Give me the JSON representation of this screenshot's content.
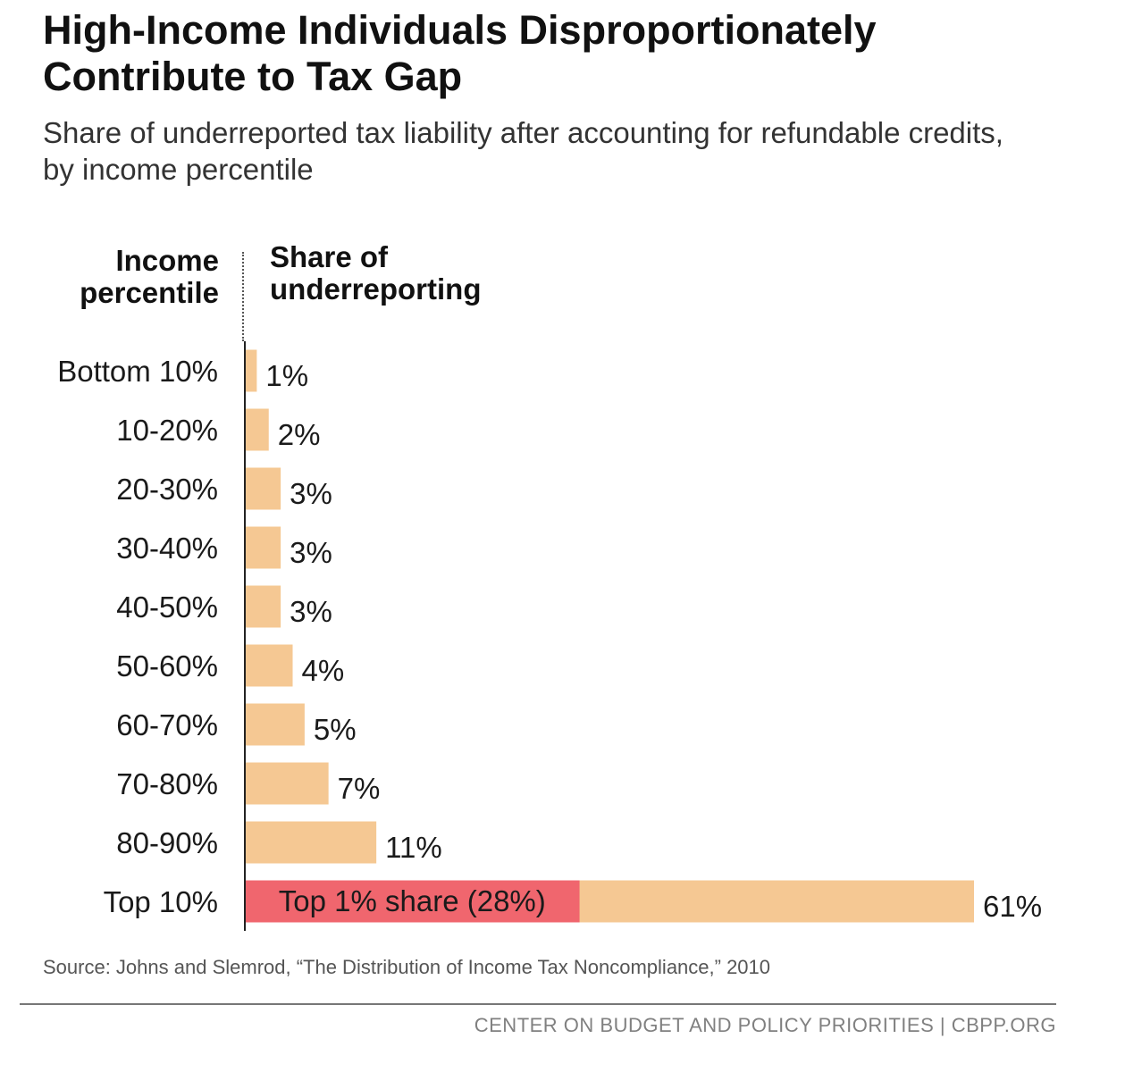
{
  "chart_data": {
    "type": "bar",
    "orientation": "horizontal",
    "title_lines": [
      "High-Income Individuals Disproportionately",
      "Contribute to Tax Gap"
    ],
    "subtitle_lines": [
      "Share of underreported tax liability after accounting for refundable credits,",
      "by income percentile"
    ],
    "category_header_lines": [
      "Income",
      "percentile"
    ],
    "value_header_lines": [
      "Share of",
      "underreporting"
    ],
    "categories": [
      "Bottom 10%",
      "10-20%",
      "20-30%",
      "30-40%",
      "40-50%",
      "50-60%",
      "60-70%",
      "70-80%",
      "80-90%",
      "Top 10%"
    ],
    "values": [
      1,
      2,
      3,
      3,
      3,
      4,
      5,
      7,
      11,
      61
    ],
    "value_labels": [
      "1%",
      "2%",
      "3%",
      "3%",
      "3%",
      "4%",
      "5%",
      "7%",
      "11%",
      "61%"
    ],
    "xlim": [
      0,
      61
    ],
    "subsegment": {
      "category": "Top 10%",
      "value": 28,
      "label": "Top 1% share (28%)"
    },
    "source": "Source: Johns and Slemrod, “The Distribution of Income Tax Noncompliance,” 2010",
    "footer": "CENTER ON BUDGET AND POLICY PRIORITIES | CBPP.ORG"
  },
  "colors": {
    "bar": "#f5c893",
    "highlight": "#f0666e",
    "axis": "#222222",
    "text": "#1a1a1a"
  }
}
